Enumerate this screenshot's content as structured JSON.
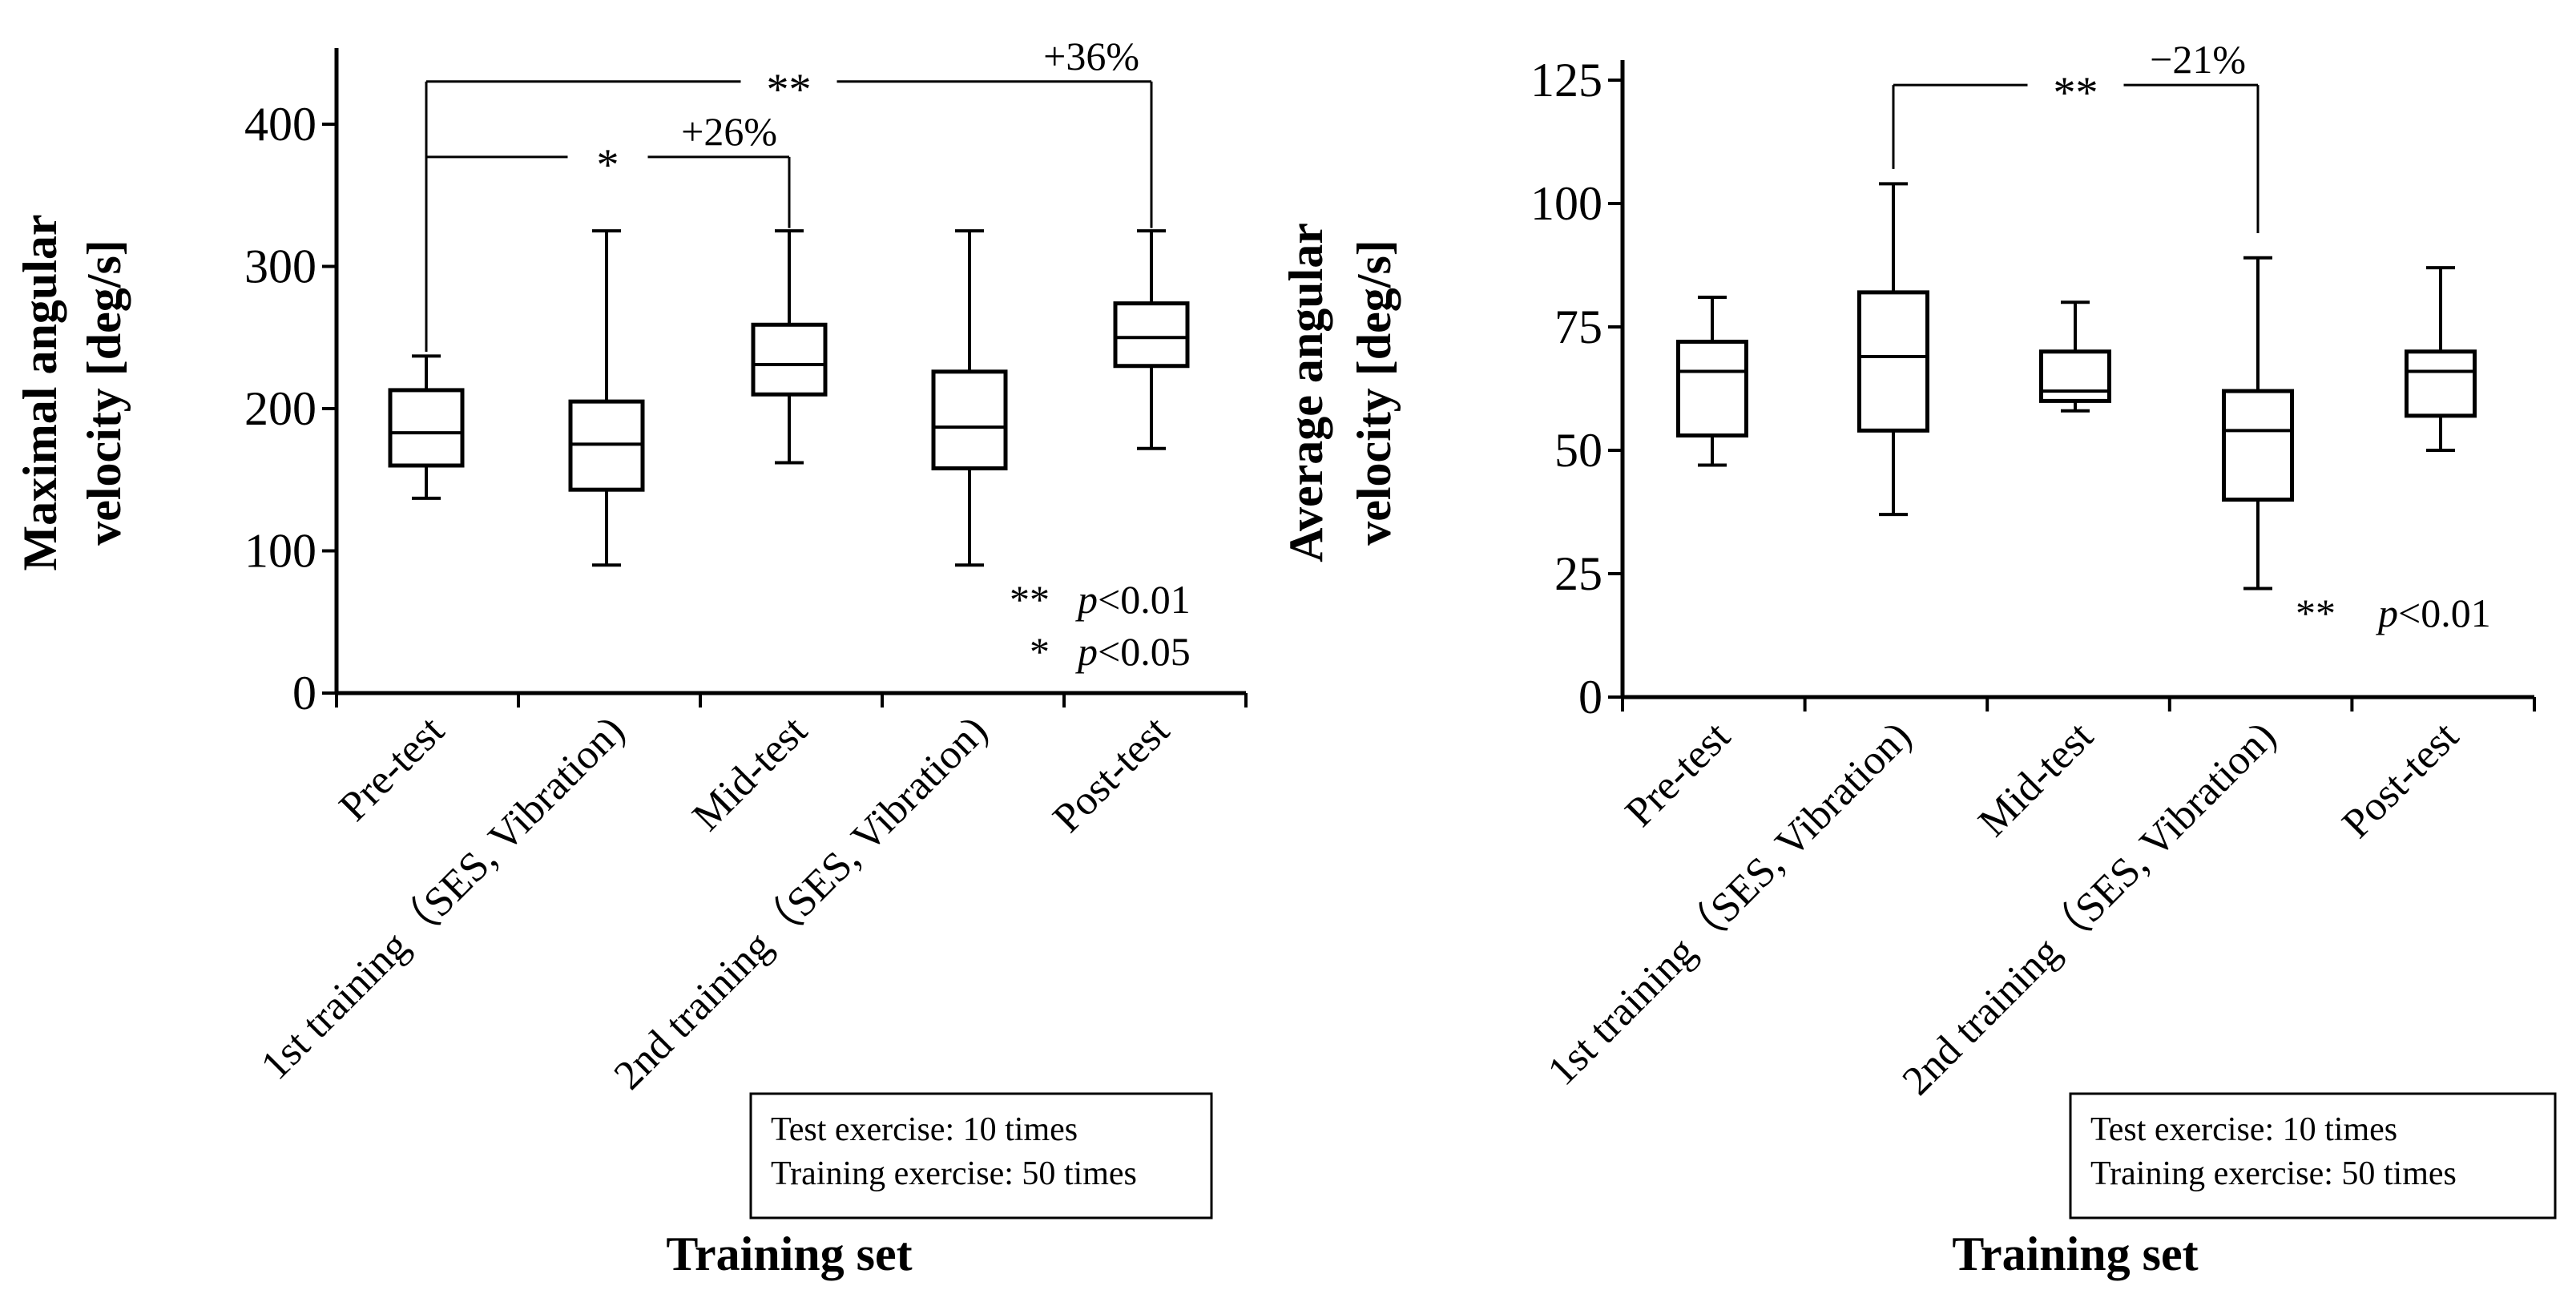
{
  "colors": {
    "ink": "#000000",
    "background": "#ffffff"
  },
  "chart_data": [
    {
      "type": "box",
      "title": "",
      "xlabel": "Training set",
      "ylabel_lines": [
        "Maximal angular",
        "velocity [deg/s]"
      ],
      "ylim": [
        0,
        450
      ],
      "yticks": [
        0,
        100,
        200,
        300,
        400
      ],
      "categories": [
        "Pre-test",
        "1st training（SES, Vibration)",
        "Mid-test",
        "2nd training（SES, Vibration)",
        "Post-test"
      ],
      "series": [
        {
          "name": "Pre-test",
          "min": 137,
          "q1": 160,
          "median": 183,
          "q3": 213,
          "max": 237
        },
        {
          "name": "1st training（SES, Vibration)",
          "min": 90,
          "q1": 143,
          "median": 175,
          "q3": 205,
          "max": 325
        },
        {
          "name": "Mid-test",
          "min": 162,
          "q1": 210,
          "median": 231,
          "q3": 259,
          "max": 325
        },
        {
          "name": "2nd training（SES, Vibration)",
          "min": 90,
          "q1": 158,
          "median": 187,
          "q3": 226,
          "max": 325
        },
        {
          "name": "Post-test",
          "min": 172,
          "q1": 230,
          "median": 250,
          "q3": 274,
          "max": 325
        }
      ],
      "brackets": [
        {
          "from": "Pre-test",
          "to": "Post-test",
          "level": 430,
          "to_end": 327,
          "from_end": 240,
          "stars": "**",
          "label": "+36%"
        },
        {
          "from": "Pre-test",
          "to": "Mid-test",
          "level": 377,
          "to_end": 327,
          "from_end": null,
          "stars": "*",
          "label": "+26%"
        }
      ],
      "legend_lines": [
        {
          "stars": "**",
          "p": "p",
          "rest": "<0.01"
        },
        {
          "stars": "*",
          "p": "p",
          "rest": "<0.05"
        }
      ],
      "note_lines": [
        "Test exercise: 10 times",
        "Training exercise: 50 times"
      ]
    },
    {
      "type": "box",
      "title": "",
      "xlabel": "Training set",
      "ylabel_lines": [
        "Average angular",
        "velocity [deg/s]"
      ],
      "ylim": [
        0,
        125
      ],
      "yticks": [
        0,
        25,
        50,
        75,
        100,
        125
      ],
      "categories": [
        "Pre-test",
        "1st training（SES, Vibration)",
        "Mid-test",
        "2nd training（SES, Vibration)",
        "Post-test"
      ],
      "series": [
        {
          "name": "Pre-test",
          "min": 47,
          "q1": 53,
          "median": 66,
          "q3": 72,
          "max": 81
        },
        {
          "name": "1st training（SES, Vibration)",
          "min": 37,
          "q1": 54,
          "median": 69,
          "q3": 82,
          "max": 104
        },
        {
          "name": "Mid-test",
          "min": 58,
          "q1": 60,
          "median": 62,
          "q3": 70,
          "max": 80
        },
        {
          "name": "2nd training（SES, Vibration)",
          "min": 22,
          "q1": 40,
          "median": 54,
          "q3": 62,
          "max": 89
        },
        {
          "name": "Post-test",
          "min": 50,
          "q1": 57,
          "median": 66,
          "q3": 70,
          "max": 87
        }
      ],
      "brackets": [
        {
          "from": "1st training（SES, Vibration)",
          "to": "2nd training（SES, Vibration)",
          "level": 124,
          "to_end": 94,
          "from_end": 107,
          "stars": "**",
          "label": "−21%"
        }
      ],
      "legend_lines": [
        {
          "stars": "**",
          "p": "p",
          "rest": "<0.01"
        }
      ],
      "note_lines": [
        "Test exercise: 10 times",
        "Training exercise: 50 times"
      ]
    }
  ]
}
